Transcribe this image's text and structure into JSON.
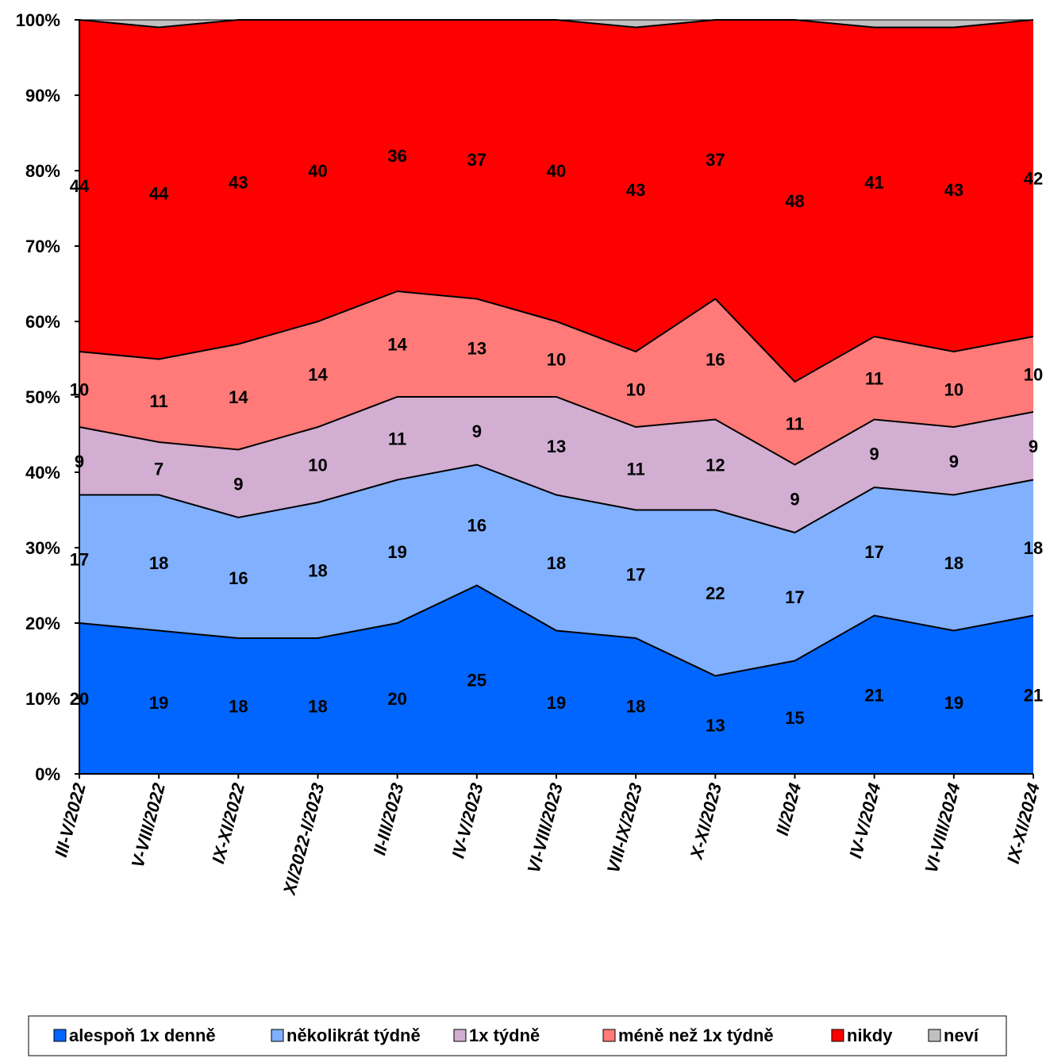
{
  "chart_data": {
    "type": "area",
    "stacked": true,
    "percent": true,
    "title": "",
    "xlabel": "",
    "ylabel": "",
    "ylim": [
      0,
      100
    ],
    "y_ticks": [
      "0%",
      "10%",
      "20%",
      "30%",
      "40%",
      "50%",
      "60%",
      "70%",
      "80%",
      "90%",
      "100%"
    ],
    "categories": [
      "III-V/2022",
      "V-VIII/2022",
      "IX-XI/2022",
      "XI/2022-I/2023",
      "II-III/2023",
      "IV-V/2023",
      "VI-VIII/2023",
      "VIII-IX/2023",
      "X-XI/2023",
      "II/2024",
      "IV-V/2024",
      "VI-VIII/2024",
      "IX-XI/2024"
    ],
    "series": [
      {
        "name": "alespoň 1x denně",
        "color": "#0066ff",
        "values": [
          20,
          19,
          18,
          18,
          20,
          25,
          19,
          18,
          13,
          15,
          21,
          19,
          21
        ]
      },
      {
        "name": "několikrát týdně",
        "color": "#80b0ff",
        "values": [
          17,
          18,
          16,
          18,
          19,
          16,
          18,
          17,
          22,
          17,
          17,
          18,
          18
        ]
      },
      {
        "name": "1x týdně",
        "color": "#d2aed2",
        "values": [
          9,
          7,
          9,
          10,
          11,
          9,
          13,
          11,
          12,
          9,
          9,
          9,
          9
        ]
      },
      {
        "name": "méně než 1x týdně",
        "color": "#ff7a78",
        "values": [
          10,
          11,
          14,
          14,
          14,
          13,
          10,
          10,
          16,
          11,
          11,
          10,
          10
        ]
      },
      {
        "name": "nikdy",
        "color": "#ff0000",
        "values": [
          44,
          44,
          43,
          40,
          36,
          37,
          40,
          43,
          37,
          48,
          41,
          43,
          42
        ]
      },
      {
        "name": "neví",
        "color": "#c0c0c0",
        "values": [
          0,
          1,
          0,
          0,
          0,
          0,
          0,
          1,
          0,
          0,
          1,
          1,
          0
        ]
      }
    ],
    "data_labels_for_series": [
      0,
      1,
      2,
      3,
      4
    ],
    "grid": false,
    "legend_position": "bottom"
  }
}
